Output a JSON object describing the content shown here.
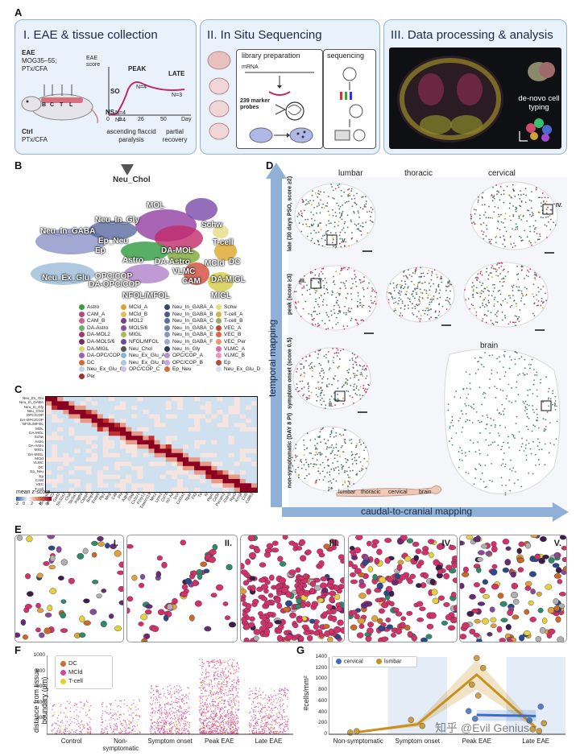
{
  "panels": {
    "A": {
      "label": "A",
      "box1": {
        "title": "I. EAE & tissue collection",
        "eae_line1": "EAE",
        "eae_line2": "MOG35–55;",
        "eae_line3": "PTx/CFA",
        "ctrl_line1": "Ctrl",
        "ctrl_line2": "PTx/CFA",
        "segments": [
          "B",
          "C",
          "T",
          "L"
        ],
        "yaxis": "EAE score",
        "ticks": [
          "0",
          "8",
          "26",
          "50",
          "Day"
        ],
        "stage_ns": "NS",
        "stage_so": "SO",
        "stage_peak": "PEAK",
        "stage_late": "LATE",
        "n4a": "N=4",
        "n4b": "N=4",
        "n4c": "N=4",
        "n3": "N=3",
        "caption_left": "ascending flaccid paralysis",
        "caption_right": "partial recovery"
      },
      "box2": {
        "title": "II. In Situ Sequencing",
        "lib": "library preparation",
        "mrna": "mRNA",
        "probes": "239 marker probes",
        "seq": "sequencing"
      },
      "box3": {
        "title": "III. Data processing & analysis",
        "denovo": "de-novo cell typing"
      }
    },
    "B": {
      "label": "B",
      "top_label": "Neu_Chol",
      "umap_labels": [
        {
          "text": "MOL"
        },
        {
          "text": "Neu_In_Gly"
        },
        {
          "text": "Schw"
        },
        {
          "text": "Neu_In_GABA"
        },
        {
          "text": "Ep_Neu"
        },
        {
          "text": "T-cell"
        },
        {
          "text": "DA-MOL"
        },
        {
          "text": "Ep"
        },
        {
          "text": "Astro"
        },
        {
          "text": "DA-Astro"
        },
        {
          "text": "DC"
        },
        {
          "text": "MCld"
        },
        {
          "text": "VLMC"
        },
        {
          "text": "CAM"
        },
        {
          "text": "Neu_Ex_Glu"
        },
        {
          "text": "OPC/COP"
        },
        {
          "text": "DA-OPC/COP"
        },
        {
          "text": "NFOL/MFOL"
        },
        {
          "text": "DA-MIGL"
        },
        {
          "text": "MIGL"
        }
      ],
      "legend": [
        {
          "name": "Astro",
          "color": "#3c9a45"
        },
        {
          "name": "MCld_A",
          "color": "#d4a437"
        },
        {
          "name": "Neu_In_GABA_A",
          "color": "#37466b"
        },
        {
          "name": "Schw",
          "color": "#e0e07a"
        },
        {
          "name": "CAM_A",
          "color": "#b04a7c"
        },
        {
          "name": "MCld_B",
          "color": "#e3bd5a"
        },
        {
          "name": "Neu_In_GABA_B",
          "color": "#4a5c8a"
        },
        {
          "name": "T-cell_A",
          "color": "#ccb54a"
        },
        {
          "name": "CAM_B",
          "color": "#c9648f"
        },
        {
          "name": "MOL2",
          "color": "#7a3e8f"
        },
        {
          "name": "Neu_In_GABA_C",
          "color": "#5b6ea3"
        },
        {
          "name": "T-cell_B",
          "color": "#9fa86a"
        },
        {
          "name": "DA-Astro",
          "color": "#6bb06e"
        },
        {
          "name": "MOL5/6",
          "color": "#8a4f9f"
        },
        {
          "name": "Neu_In_GABA_D",
          "color": "#6f82b6"
        },
        {
          "name": "VEC_A",
          "color": "#c9442f"
        },
        {
          "name": "DA-MOL2",
          "color": "#a43a6a"
        },
        {
          "name": "MIGL",
          "color": "#b5b84d"
        },
        {
          "name": "Neu_In_GABA_E",
          "color": "#8398c8"
        },
        {
          "name": "VEC_B",
          "color": "#d86b4d"
        },
        {
          "name": "DA-MOL5/6",
          "color": "#7b2d5a"
        },
        {
          "name": "NFOL/MFOL",
          "color": "#6a4a9a"
        },
        {
          "name": "Neu_In_GABA_F",
          "color": "#98acd6"
        },
        {
          "name": "VEC_Per",
          "color": "#e39a7a"
        },
        {
          "name": "DA-MIGL",
          "color": "#d8d86a"
        },
        {
          "name": "Neu_Chol",
          "color": "#555555"
        },
        {
          "name": "Neu_In_Gly",
          "color": "#2e3a5e"
        },
        {
          "name": "VLMC_A",
          "color": "#d46fa8"
        },
        {
          "name": "DA-OPC/COP",
          "color": "#a05fb0"
        },
        {
          "name": "Neu_Ex_Glu_A",
          "color": "#8bb5d8"
        },
        {
          "name": "OPC/COP_A",
          "color": "#b98fcf"
        },
        {
          "name": "VLMC_B",
          "color": "#e797c4"
        },
        {
          "name": "DC",
          "color": "#d46a2a"
        },
        {
          "name": "Neu_Ex_Glu_B",
          "color": "#a8c8e4"
        },
        {
          "name": "OPC/COP_B",
          "color": "#c8a6da"
        },
        {
          "name": "Ep",
          "color": "#b84a3a"
        },
        {
          "name": "Neu_Ex_Glu_C",
          "color": "#bcd6ec"
        },
        {
          "name": "OPC/COP_C",
          "color": "#d6bde4"
        },
        {
          "name": "Ep_Neu",
          "color": "#c9723a"
        },
        {
          "name": "Neu_Ex_Glu_D",
          "color": "#d0e2f2"
        },
        {
          "name": "Per",
          "color": "#a03030"
        }
      ]
    },
    "C": {
      "label": "C",
      "rows": [
        "Neu_Ex_Glu",
        "Neu_In_GABA",
        "Neu_In_Gly",
        "Neu_Chol",
        "OPC/COP",
        "DA-OPC/COP",
        "NFOL/MFOL",
        "MOL",
        "DA-MOL",
        "Schw",
        "Astro",
        "DA-Astro",
        "MIGL",
        "DA-MIGL",
        "MCld",
        "VLMC",
        "DC",
        "Ep_Neu",
        "Ep",
        "CAM",
        "VEC",
        "T-cell"
      ],
      "cols": [
        "Slc17a6",
        "Snap25",
        "Gad1",
        "Slc32a1",
        "Chat",
        "Slc5a7",
        "Pdgfra",
        "Cspg4",
        "Bmp4",
        "Enpp6",
        "Plp1",
        "Mog",
        "C4b",
        "Prx",
        "Aqp4",
        "Gfap",
        "Cx3cr1",
        "P2ry12",
        "Tmem119",
        "Mrc1",
        "Lyve1",
        "Cd74",
        "H2-Aa",
        "Dcn",
        "Col1a1",
        "Itgax",
        "Flt3",
        "Ttr",
        "Kl",
        "Ptprc",
        "Cd3e",
        "Pecam1",
        "Cldn5",
        "Rgs5",
        "Kcnj8",
        "Ccl5",
        "Cd8b1"
      ],
      "colorbar_title": "mean z-score",
      "colorbar_ticks": [
        "-2",
        "0",
        "2",
        "4",
        "6"
      ]
    },
    "D": {
      "label": "D",
      "col_lumbar": "lumbar",
      "col_thoracic": "thoracic",
      "col_cervical": "cervical",
      "row_late": "late (30 days PSO, score ≥2)",
      "row_peak": "peak (score ≥3)",
      "row_so": "symptom onset (score 0.5)",
      "row_ns": "non-symptomatic (DAY 8 PI)",
      "brain": "brain",
      "zoom_iv": "IV.",
      "zoom_v": "V.",
      "zoom_iii": "III.",
      "zoom_ii": "II.",
      "zoom_i": "I.",
      "axis_vertical": "temporal mapping",
      "axis_horizontal": "caudal-to-cranial mapping",
      "cord_lumbar": "lumbar",
      "cord_thoracic": "thoracic",
      "cord_cervical": "cervical",
      "cord_brain": "brain"
    },
    "E": {
      "label": "E",
      "tiles": [
        "I.",
        "II.",
        "III.",
        "IV.",
        "V."
      ]
    },
    "F": {
      "label": "F",
      "yaxis": "distance from tissue boundary (μm)",
      "categories": [
        "Control",
        "Non-symptomatic",
        "Symptom onset",
        "Peak EAE",
        "Late EAE"
      ],
      "yticks": [
        "200",
        "400",
        "600",
        "800",
        "1000"
      ],
      "legend": [
        {
          "name": "DC",
          "color": "#d46a2a"
        },
        {
          "name": "MCld",
          "color": "#d4459a"
        },
        {
          "name": "T-cell",
          "color": "#e6d21e"
        }
      ]
    },
    "G": {
      "label": "G",
      "yaxis": "#cells/mm²",
      "categories": [
        "Non-symptomatic",
        "Symptom onset",
        "Peak EAE",
        "Late EAE"
      ],
      "yticks": [
        "0",
        "200",
        "400",
        "600",
        "800",
        "1000",
        "1200",
        "1400"
      ],
      "legend": [
        {
          "name": "cervical",
          "color": "#3c6cc4"
        },
        {
          "name": "lumbar",
          "color": "#c8901e"
        }
      ],
      "watermark": "知乎 @Evil Genius"
    }
  },
  "chart_data": [
    {
      "type": "line",
      "panel": "G",
      "categories": [
        "Non-symptomatic",
        "Symptom onset",
        "Peak EAE",
        "Late EAE"
      ],
      "series": [
        {
          "name": "lumbar",
          "values": [
            40,
            180,
            1080,
            120
          ]
        },
        {
          "name": "cervical",
          "values": [
            null,
            null,
            350,
            330
          ]
        }
      ],
      "points": {
        "lumbar": [
          [
            0,
            30
          ],
          [
            0,
            55
          ],
          [
            1,
            150
          ],
          [
            1,
            260
          ],
          [
            2,
            1380
          ],
          [
            2,
            1200
          ],
          [
            2,
            900
          ],
          [
            2,
            700
          ],
          [
            3,
            200
          ],
          [
            3,
            90
          ],
          [
            3,
            60
          ]
        ],
        "cervical": [
          [
            2,
            420
          ],
          [
            2,
            280
          ],
          [
            3,
            500
          ],
          [
            3,
            250
          ]
        ]
      },
      "ylabel": "#cells/mm²",
      "ylim": [
        0,
        1400
      ]
    },
    {
      "type": "scatter",
      "panel": "F",
      "categories": [
        "Control",
        "Non-symptomatic",
        "Symptom onset",
        "Peak EAE",
        "Late EAE"
      ],
      "series_names": [
        "DC",
        "MCld",
        "T-cell"
      ],
      "relative_density": [
        0.12,
        0.15,
        0.45,
        1.0,
        0.4
      ],
      "ylabel": "distance from tissue boundary (μm)",
      "ylim": [
        0,
        1000
      ]
    }
  ]
}
